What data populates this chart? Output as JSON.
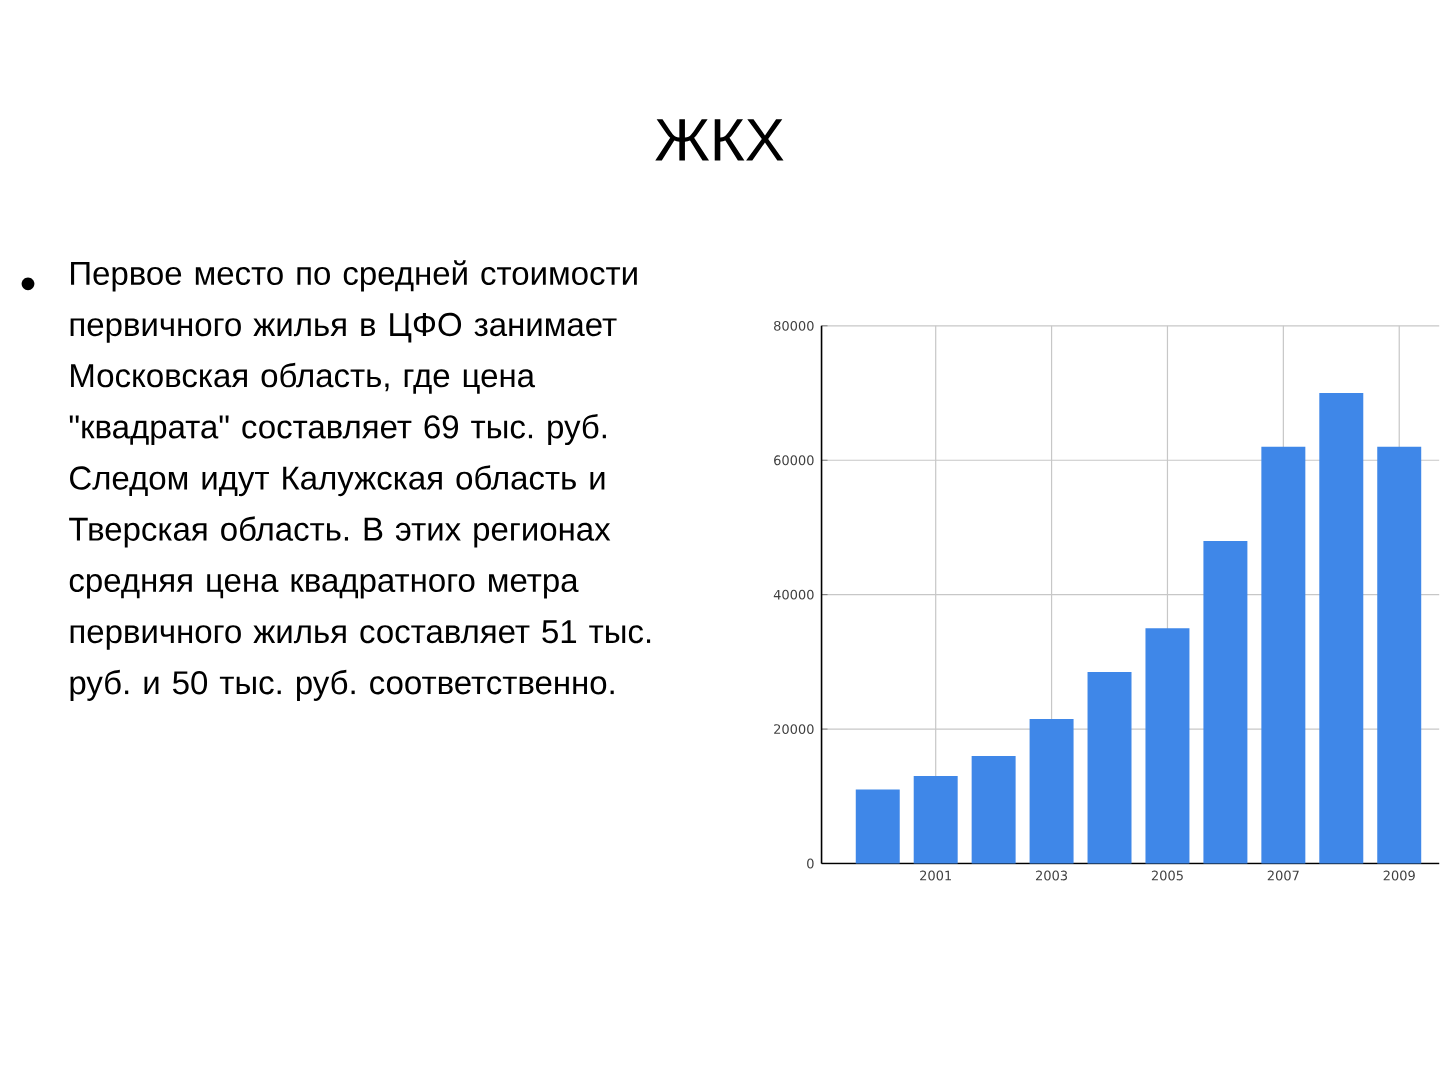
{
  "chart_data": {
    "type": "bar",
    "title": "ЖКХ",
    "annotations": [
      "Первое место по средней стоимости первичного жилья в ЦФО занимает Московская область, где цена \"квадрата\" составляет 69 тыс. руб. Следом идут Калужская область и Тверская область. В этих регионах средняя цена квадратного метра первичного жилья составляет 51 тыс. руб. и 50 тыс. руб. соответственно."
    ],
    "categories": [
      null,
      "2001",
      null,
      "2003",
      null,
      "2005",
      null,
      "2007",
      null,
      "2009"
    ],
    "values": [
      11000,
      13000,
      16000,
      21500,
      28500,
      35000,
      48000,
      62000,
      70000,
      62000
    ],
    "color": "#3f87e8",
    "ylim": [
      0,
      80000
    ],
    "yticks": [
      0,
      20000,
      40000,
      60000,
      80000
    ],
    "grid": true
  }
}
